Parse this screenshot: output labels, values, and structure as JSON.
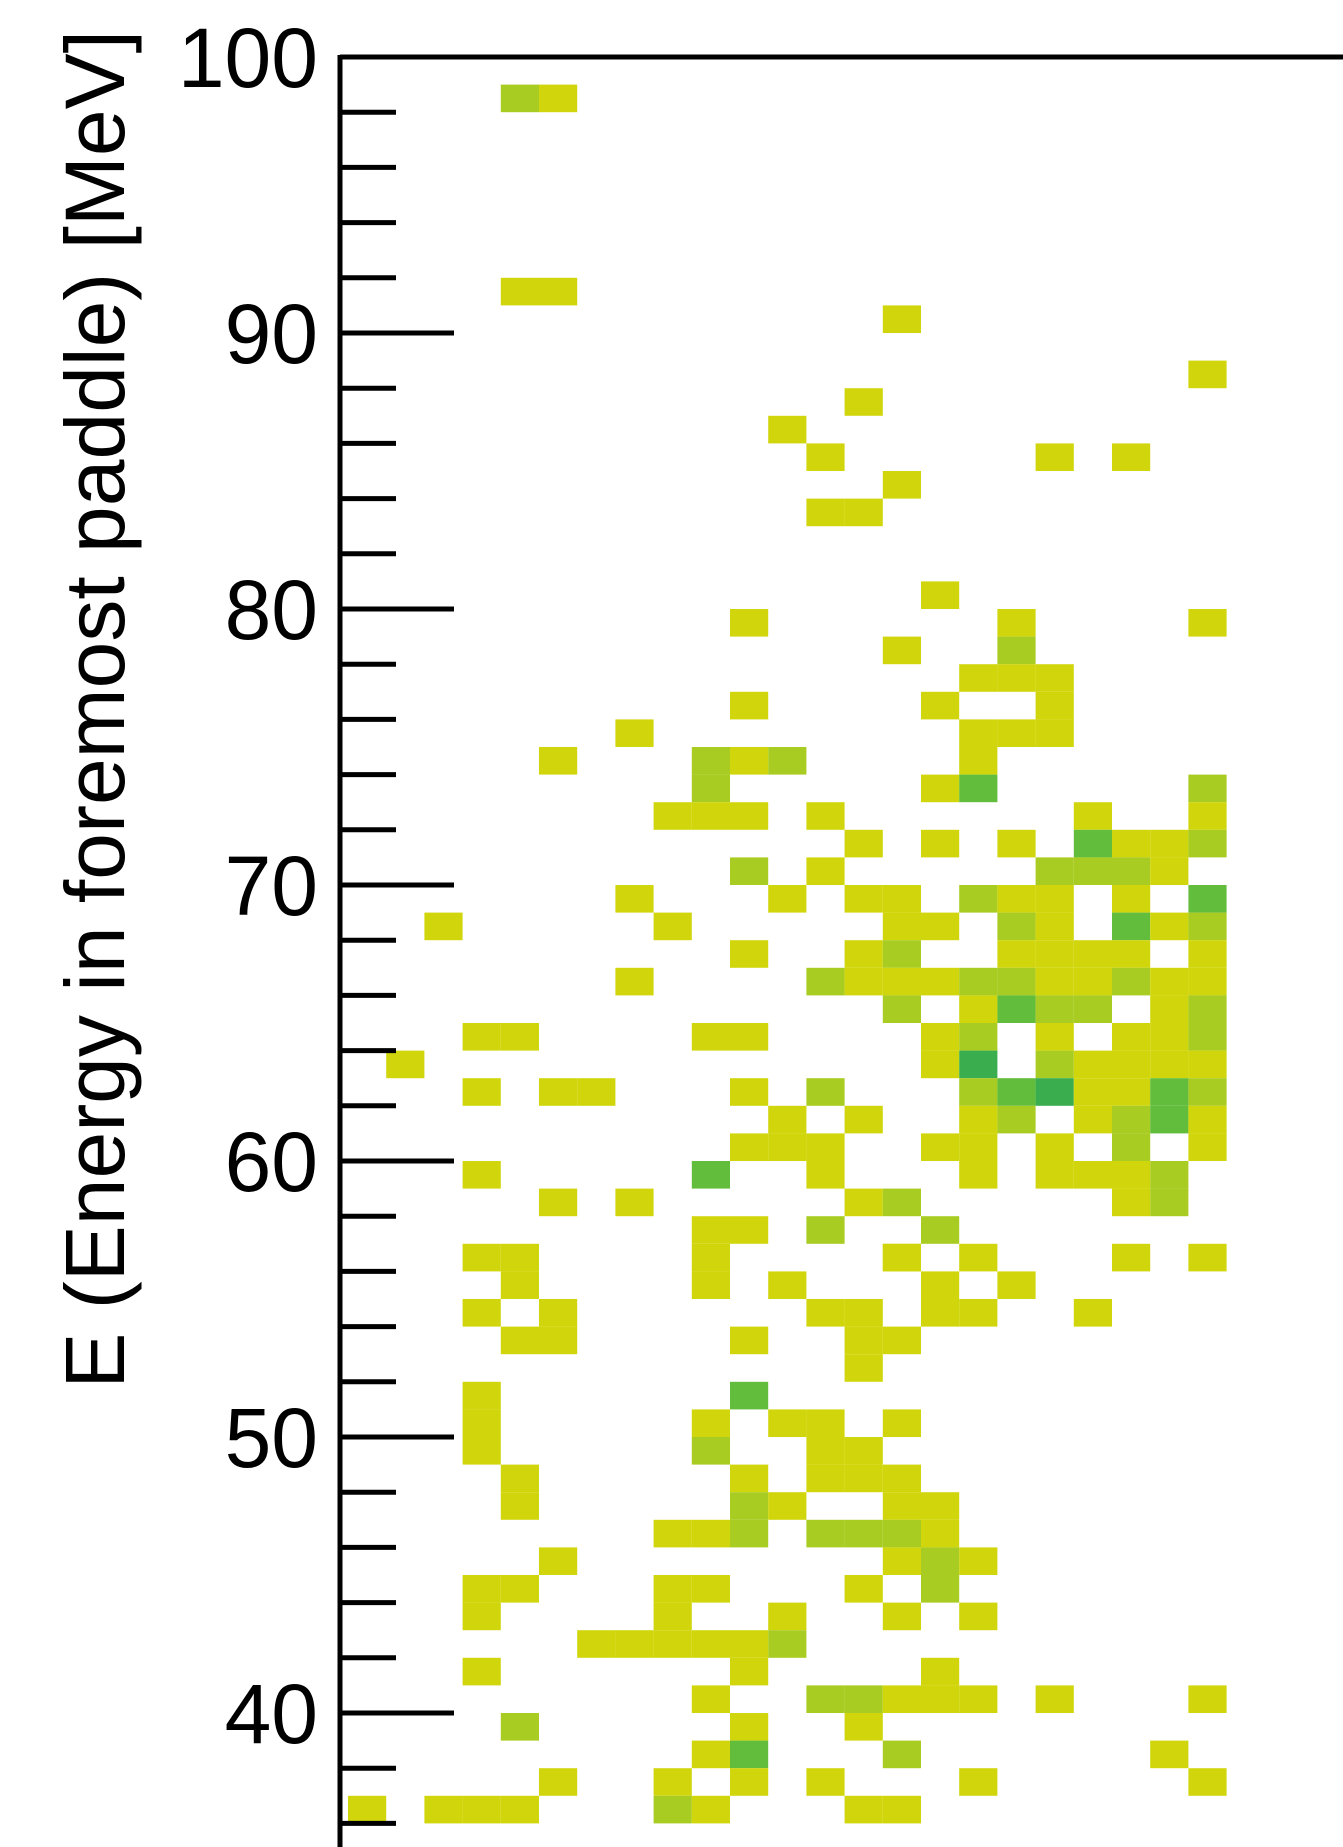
{
  "chart_data": {
    "type": "heatmap",
    "title": "",
    "xlabel": "",
    "ylabel": "E (Energy in foremost paddle) [MeV]",
    "ylim": [
      35,
      100
    ],
    "y_major_ticks": [
      40,
      50,
      60,
      70,
      80,
      90,
      100
    ],
    "y_tick_labels": [
      "40",
      "50",
      "60",
      "70",
      "80",
      "90",
      "100"
    ],
    "y_minor_step": 2,
    "xlim": [
      0,
      21
    ],
    "cell_width": 1,
    "cell_height": 1,
    "colors": {
      "1": "#d1d60c",
      "2": "#a8cc21",
      "3": "#63bd3c",
      "4": "#3aae4f",
      "frame": "#000000",
      "background": "#ffffff"
    },
    "cells": [
      [
        8,
        98,
        2
      ],
      [
        9,
        98,
        1
      ],
      [
        8,
        91,
        1
      ],
      [
        9,
        91,
        1
      ],
      [
        18,
        90,
        1
      ],
      [
        26,
        88,
        1
      ],
      [
        17,
        87,
        1
      ],
      [
        15,
        86,
        1
      ],
      [
        16,
        85,
        1
      ],
      [
        22,
        85,
        1
      ],
      [
        24,
        85,
        1
      ],
      [
        18,
        84,
        1
      ],
      [
        16,
        83,
        1
      ],
      [
        17,
        83,
        1
      ],
      [
        19,
        80,
        1
      ],
      [
        14,
        79,
        1
      ],
      [
        21,
        79,
        1
      ],
      [
        26,
        79,
        1
      ],
      [
        18,
        78,
        1
      ],
      [
        21,
        78,
        2
      ],
      [
        20,
        77,
        1
      ],
      [
        21,
        77,
        1
      ],
      [
        22,
        77,
        1
      ],
      [
        14,
        76,
        1
      ],
      [
        19,
        76,
        1
      ],
      [
        22,
        76,
        1
      ],
      [
        11,
        75,
        1
      ],
      [
        20,
        75,
        1
      ],
      [
        21,
        75,
        1
      ],
      [
        22,
        75,
        1
      ],
      [
        9,
        74,
        1
      ],
      [
        13,
        74,
        2
      ],
      [
        14,
        74,
        1
      ],
      [
        15,
        74,
        2
      ],
      [
        20,
        74,
        1
      ],
      [
        13,
        73,
        2
      ],
      [
        19,
        73,
        1
      ],
      [
        20,
        73,
        3
      ],
      [
        26,
        73,
        2
      ],
      [
        12,
        72,
        1
      ],
      [
        13,
        72,
        1
      ],
      [
        14,
        72,
        1
      ],
      [
        16,
        72,
        1
      ],
      [
        23,
        72,
        1
      ],
      [
        26,
        72,
        1
      ],
      [
        17,
        71,
        1
      ],
      [
        19,
        71,
        1
      ],
      [
        21,
        71,
        1
      ],
      [
        23,
        71,
        3
      ],
      [
        24,
        71,
        1
      ],
      [
        25,
        71,
        1
      ],
      [
        26,
        71,
        2
      ],
      [
        14,
        70,
        2
      ],
      [
        16,
        70,
        1
      ],
      [
        22,
        70,
        2
      ],
      [
        23,
        70,
        2
      ],
      [
        24,
        70,
        2
      ],
      [
        25,
        70,
        1
      ],
      [
        11,
        69,
        1
      ],
      [
        15,
        69,
        1
      ],
      [
        17,
        69,
        1
      ],
      [
        18,
        69,
        1
      ],
      [
        20,
        69,
        2
      ],
      [
        21,
        69,
        1
      ],
      [
        22,
        69,
        1
      ],
      [
        24,
        69,
        1
      ],
      [
        26,
        69,
        3
      ],
      [
        6,
        68,
        1
      ],
      [
        12,
        68,
        1
      ],
      [
        18,
        68,
        1
      ],
      [
        19,
        68,
        1
      ],
      [
        21,
        68,
        2
      ],
      [
        22,
        68,
        1
      ],
      [
        24,
        68,
        3
      ],
      [
        25,
        68,
        1
      ],
      [
        26,
        68,
        2
      ],
      [
        14,
        67,
        1
      ],
      [
        17,
        67,
        1
      ],
      [
        18,
        67,
        2
      ],
      [
        21,
        67,
        1
      ],
      [
        22,
        67,
        1
      ],
      [
        23,
        67,
        1
      ],
      [
        24,
        67,
        1
      ],
      [
        26,
        67,
        1
      ],
      [
        11,
        66,
        1
      ],
      [
        16,
        66,
        2
      ],
      [
        17,
        66,
        1
      ],
      [
        18,
        66,
        1
      ],
      [
        19,
        66,
        1
      ],
      [
        20,
        66,
        2
      ],
      [
        21,
        66,
        2
      ],
      [
        22,
        66,
        1
      ],
      [
        23,
        66,
        1
      ],
      [
        24,
        66,
        2
      ],
      [
        25,
        66,
        1
      ],
      [
        26,
        66,
        1
      ],
      [
        18,
        65,
        2
      ],
      [
        20,
        65,
        1
      ],
      [
        21,
        65,
        3
      ],
      [
        22,
        65,
        2
      ],
      [
        23,
        65,
        2
      ],
      [
        25,
        65,
        1
      ],
      [
        26,
        65,
        2
      ],
      [
        7,
        64,
        1
      ],
      [
        8,
        64,
        1
      ],
      [
        13,
        64,
        1
      ],
      [
        14,
        64,
        1
      ],
      [
        19,
        64,
        1
      ],
      [
        20,
        64,
        2
      ],
      [
        22,
        64,
        1
      ],
      [
        24,
        64,
        1
      ],
      [
        25,
        64,
        1
      ],
      [
        26,
        64,
        2
      ],
      [
        5,
        63,
        1
      ],
      [
        19,
        63,
        1
      ],
      [
        20,
        63,
        4
      ],
      [
        22,
        63,
        2
      ],
      [
        23,
        63,
        1
      ],
      [
        24,
        63,
        1
      ],
      [
        25,
        63,
        1
      ],
      [
        26,
        63,
        1
      ],
      [
        7,
        62,
        1
      ],
      [
        9,
        62,
        1
      ],
      [
        10,
        62,
        1
      ],
      [
        14,
        62,
        1
      ],
      [
        16,
        62,
        2
      ],
      [
        20,
        62,
        2
      ],
      [
        21,
        62,
        3
      ],
      [
        22,
        62,
        4
      ],
      [
        23,
        62,
        1
      ],
      [
        24,
        62,
        1
      ],
      [
        25,
        62,
        3
      ],
      [
        26,
        62,
        2
      ],
      [
        15,
        61,
        1
      ],
      [
        17,
        61,
        1
      ],
      [
        20,
        61,
        1
      ],
      [
        21,
        61,
        2
      ],
      [
        23,
        61,
        1
      ],
      [
        24,
        61,
        2
      ],
      [
        25,
        61,
        3
      ],
      [
        26,
        61,
        1
      ],
      [
        14,
        60,
        1
      ],
      [
        15,
        60,
        1
      ],
      [
        16,
        60,
        1
      ],
      [
        19,
        60,
        1
      ],
      [
        20,
        60,
        1
      ],
      [
        22,
        60,
        1
      ],
      [
        24,
        60,
        2
      ],
      [
        26,
        60,
        1
      ],
      [
        7,
        59,
        1
      ],
      [
        13,
        59,
        3
      ],
      [
        16,
        59,
        1
      ],
      [
        20,
        59,
        1
      ],
      [
        22,
        59,
        1
      ],
      [
        23,
        59,
        1
      ],
      [
        24,
        59,
        1
      ],
      [
        25,
        59,
        2
      ],
      [
        9,
        58,
        1
      ],
      [
        11,
        58,
        1
      ],
      [
        17,
        58,
        1
      ],
      [
        18,
        58,
        2
      ],
      [
        24,
        58,
        1
      ],
      [
        25,
        58,
        2
      ],
      [
        13,
        57,
        1
      ],
      [
        14,
        57,
        1
      ],
      [
        16,
        57,
        2
      ],
      [
        19,
        57,
        2
      ],
      [
        13,
        56,
        1
      ],
      [
        18,
        56,
        1
      ],
      [
        20,
        56,
        1
      ],
      [
        7,
        56,
        1
      ],
      [
        8,
        56,
        1
      ],
      [
        18,
        56,
        1
      ],
      [
        24,
        56,
        1
      ],
      [
        26,
        56,
        1
      ],
      [
        8,
        55,
        1
      ],
      [
        13,
        55,
        1
      ],
      [
        15,
        55,
        1
      ],
      [
        19,
        55,
        1
      ],
      [
        21,
        55,
        1
      ],
      [
        7,
        54,
        1
      ],
      [
        9,
        54,
        1
      ],
      [
        16,
        54,
        1
      ],
      [
        17,
        54,
        1
      ],
      [
        19,
        54,
        1
      ],
      [
        20,
        54,
        1
      ],
      [
        23,
        54,
        1
      ],
      [
        8,
        53,
        1
      ],
      [
        9,
        53,
        1
      ],
      [
        14,
        53,
        1
      ],
      [
        17,
        53,
        1
      ],
      [
        18,
        53,
        1
      ],
      [
        17,
        52,
        1
      ],
      [
        7,
        51,
        1
      ],
      [
        14,
        51,
        3
      ],
      [
        7,
        50,
        1
      ],
      [
        13,
        50,
        1
      ],
      [
        15,
        50,
        1
      ],
      [
        16,
        50,
        1
      ],
      [
        18,
        50,
        1
      ],
      [
        7,
        49,
        1
      ],
      [
        13,
        49,
        2
      ],
      [
        16,
        49,
        1
      ],
      [
        17,
        49,
        1
      ],
      [
        8,
        48,
        1
      ],
      [
        14,
        48,
        1
      ],
      [
        16,
        48,
        1
      ],
      [
        17,
        48,
        1
      ],
      [
        18,
        48,
        1
      ],
      [
        8,
        47,
        1
      ],
      [
        14,
        47,
        2
      ],
      [
        15,
        47,
        1
      ],
      [
        18,
        47,
        1
      ],
      [
        19,
        47,
        1
      ],
      [
        12,
        46,
        1
      ],
      [
        13,
        46,
        1
      ],
      [
        14,
        46,
        2
      ],
      [
        16,
        46,
        2
      ],
      [
        17,
        46,
        2
      ],
      [
        18,
        46,
        2
      ],
      [
        19,
        46,
        1
      ],
      [
        9,
        45,
        1
      ],
      [
        18,
        45,
        1
      ],
      [
        19,
        45,
        2
      ],
      [
        20,
        45,
        1
      ],
      [
        7,
        44,
        1
      ],
      [
        8,
        44,
        1
      ],
      [
        12,
        44,
        1
      ],
      [
        13,
        44,
        1
      ],
      [
        17,
        44,
        1
      ],
      [
        19,
        44,
        2
      ],
      [
        7,
        43,
        1
      ],
      [
        12,
        43,
        1
      ],
      [
        15,
        43,
        1
      ],
      [
        18,
        43,
        1
      ],
      [
        20,
        43,
        1
      ],
      [
        10,
        42,
        1
      ],
      [
        11,
        42,
        1
      ],
      [
        12,
        42,
        1
      ],
      [
        13,
        42,
        1
      ],
      [
        14,
        42,
        1
      ],
      [
        15,
        42,
        2
      ],
      [
        7,
        41,
        1
      ],
      [
        14,
        41,
        1
      ],
      [
        19,
        41,
        1
      ],
      [
        13,
        40,
        1
      ],
      [
        16,
        40,
        2
      ],
      [
        17,
        40,
        2
      ],
      [
        18,
        40,
        1
      ],
      [
        19,
        40,
        1
      ],
      [
        20,
        40,
        1
      ],
      [
        22,
        40,
        1
      ],
      [
        26,
        40,
        1
      ],
      [
        8,
        39,
        2
      ],
      [
        14,
        39,
        1
      ],
      [
        17,
        39,
        1
      ],
      [
        13,
        38,
        1
      ],
      [
        14,
        38,
        3
      ],
      [
        18,
        38,
        2
      ],
      [
        25,
        38,
        1
      ],
      [
        9,
        37,
        1
      ],
      [
        12,
        37,
        1
      ],
      [
        14,
        37,
        1
      ],
      [
        16,
        37,
        1
      ],
      [
        20,
        37,
        1
      ],
      [
        26,
        37,
        1
      ],
      [
        4,
        36,
        1
      ],
      [
        6,
        36,
        1
      ],
      [
        7,
        36,
        1
      ],
      [
        8,
        36,
        1
      ],
      [
        12,
        36,
        2
      ],
      [
        13,
        36,
        1
      ],
      [
        17,
        36,
        1
      ],
      [
        18,
        36,
        1
      ]
    ]
  }
}
